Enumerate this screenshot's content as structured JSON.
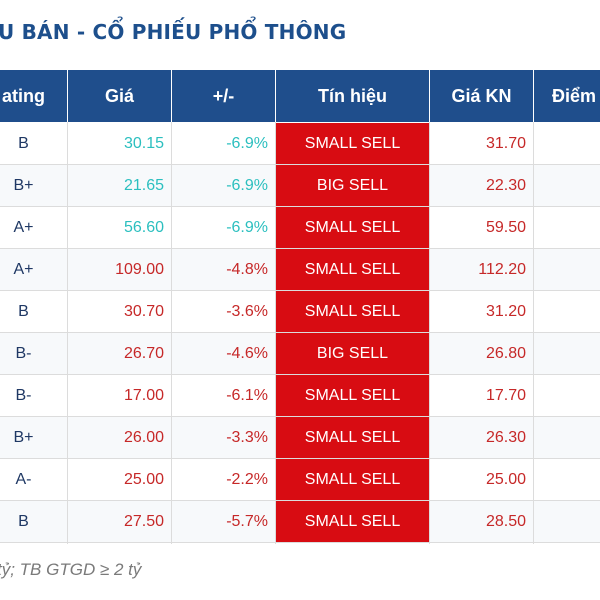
{
  "title": "U BÁN - CỔ PHIẾU PHỔ THÔNG",
  "table": {
    "headers": {
      "rating": "ating",
      "price": "Giá",
      "change": "+/-",
      "signal": "Tín hiệu",
      "kn_price": "Giá KN",
      "score": "Điểm"
    },
    "rows": [
      {
        "rating": "B",
        "price": "30.15",
        "change": "-6.9%",
        "signal": "SMALL SELL",
        "kn_price": "31.70",
        "price_color": "teal",
        "change_color": "teal"
      },
      {
        "rating": "B+",
        "price": "21.65",
        "change": "-6.9%",
        "signal": "BIG SELL",
        "kn_price": "22.30",
        "price_color": "teal",
        "change_color": "teal"
      },
      {
        "rating": "A+",
        "price": "56.60",
        "change": "-6.9%",
        "signal": "SMALL SELL",
        "kn_price": "59.50",
        "price_color": "teal",
        "change_color": "teal"
      },
      {
        "rating": "A+",
        "price": "109.00",
        "change": "-4.8%",
        "signal": "SMALL SELL",
        "kn_price": "112.20",
        "price_color": "red",
        "change_color": "red"
      },
      {
        "rating": "B",
        "price": "30.70",
        "change": "-3.6%",
        "signal": "SMALL SELL",
        "kn_price": "31.20",
        "price_color": "red",
        "change_color": "red"
      },
      {
        "rating": "B-",
        "price": "26.70",
        "change": "-4.6%",
        "signal": "BIG SELL",
        "kn_price": "26.80",
        "price_color": "red",
        "change_color": "red"
      },
      {
        "rating": "B-",
        "price": "17.00",
        "change": "-6.1%",
        "signal": "SMALL SELL",
        "kn_price": "17.70",
        "price_color": "red",
        "change_color": "red"
      },
      {
        "rating": "B+",
        "price": "26.00",
        "change": "-3.3%",
        "signal": "SMALL SELL",
        "kn_price": "26.30",
        "price_color": "red",
        "change_color": "red"
      },
      {
        "rating": "A-",
        "price": "25.00",
        "change": "-2.2%",
        "signal": "SMALL SELL",
        "kn_price": "25.00",
        "price_color": "red",
        "change_color": "red"
      },
      {
        "rating": "B",
        "price": "27.50",
        "change": "-5.7%",
        "signal": "SMALL SELL",
        "kn_price": "28.50",
        "price_color": "red",
        "change_color": "red"
      }
    ]
  },
  "footnote": "tỷ; TB GTGD ≥ 2 tỷ",
  "colors": {
    "header_bg": "#1f4e8c",
    "title": "#1d4f8c",
    "signal_bg": "#d80c12",
    "teal": "#2bbfbf",
    "red": "#c62828",
    "row_alt": "#f7f9fb"
  }
}
